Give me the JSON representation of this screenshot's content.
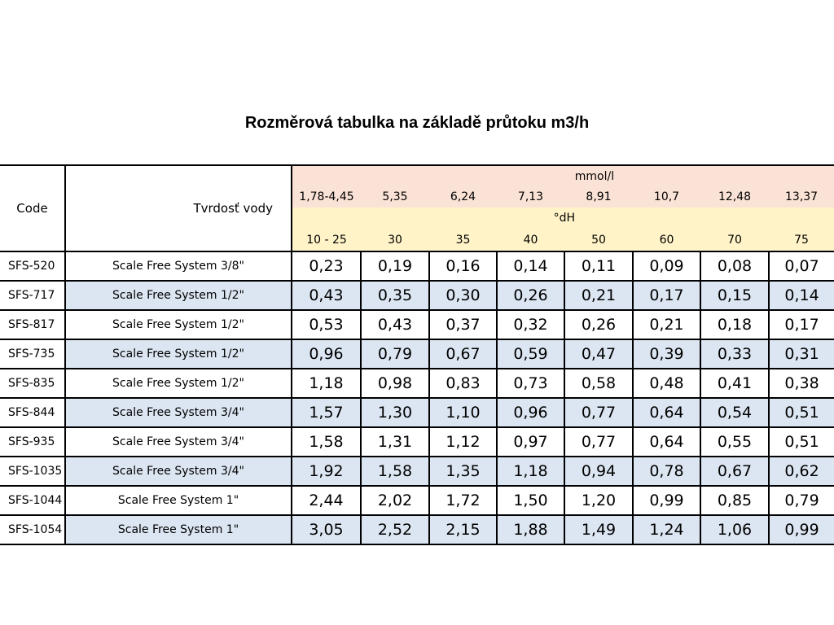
{
  "title": "Rozměrová tabulka na základě průtoku m3/h",
  "headers": {
    "code": "Code",
    "hardness": "Tvrdosť vody",
    "mmol_label": "mmol/l",
    "dh_label": "°dH",
    "mmol_values": [
      "1,78-4,45",
      "5,35",
      "6,24",
      "7,13",
      "8,91",
      "10,7",
      "12,48",
      "13,37"
    ],
    "dh_values": [
      "10 - 25",
      "30",
      "35",
      "40",
      "50",
      "60",
      "70",
      "75"
    ]
  },
  "rows": [
    {
      "code": "SFS-520",
      "name": "Scale Free System 3/8\"",
      "values": [
        "0,23",
        "0,19",
        "0,16",
        "0,14",
        "0,11",
        "0,09",
        "0,08",
        "0,07"
      ]
    },
    {
      "code": "SFS-717",
      "name": "Scale Free System 1/2\"",
      "values": [
        "0,43",
        "0,35",
        "0,30",
        "0,26",
        "0,21",
        "0,17",
        "0,15",
        "0,14"
      ]
    },
    {
      "code": "SFS-817",
      "name": "Scale Free System 1/2\"",
      "values": [
        "0,53",
        "0,43",
        "0,37",
        "0,32",
        "0,26",
        "0,21",
        "0,18",
        "0,17"
      ]
    },
    {
      "code": "SFS-735",
      "name": "Scale Free System 1/2\"",
      "values": [
        "0,96",
        "0,79",
        "0,67",
        "0,59",
        "0,47",
        "0,39",
        "0,33",
        "0,31"
      ]
    },
    {
      "code": "SFS-835",
      "name": "Scale Free System 1/2\"",
      "values": [
        "1,18",
        "0,98",
        "0,83",
        "0,73",
        "0,58",
        "0,48",
        "0,41",
        "0,38"
      ]
    },
    {
      "code": "SFS-844",
      "name": "Scale Free System 3/4\"",
      "values": [
        "1,57",
        "1,30",
        "1,10",
        "0,96",
        "0,77",
        "0,64",
        "0,54",
        "0,51"
      ]
    },
    {
      "code": "SFS-935",
      "name": "Scale Free System 3/4\"",
      "values": [
        "1,58",
        "1,31",
        "1,12",
        "0,97",
        "0,77",
        "0,64",
        "0,55",
        "0,51"
      ]
    },
    {
      "code": "SFS-1035",
      "name": "Scale Free System 3/4\"",
      "values": [
        "1,92",
        "1,58",
        "1,35",
        "1,18",
        "0,94",
        "0,78",
        "0,67",
        "0,62"
      ]
    },
    {
      "code": "SFS-1044",
      "name": "Scale Free System  1\"",
      "values": [
        "2,44",
        "2,02",
        "1,72",
        "1,50",
        "1,20",
        "0,99",
        "0,85",
        "0,79"
      ]
    },
    {
      "code": "SFS-1054",
      "name": "Scale Free System 1\"",
      "values": [
        "3,05",
        "2,52",
        "2,15",
        "1,88",
        "1,49",
        "1,24",
        "1,06",
        "0,99"
      ]
    }
  ],
  "colors": {
    "mmol_bg": "#fbe2d6",
    "dh_bg": "#fff3c7",
    "alt_row_bg": "#dce6f2"
  }
}
